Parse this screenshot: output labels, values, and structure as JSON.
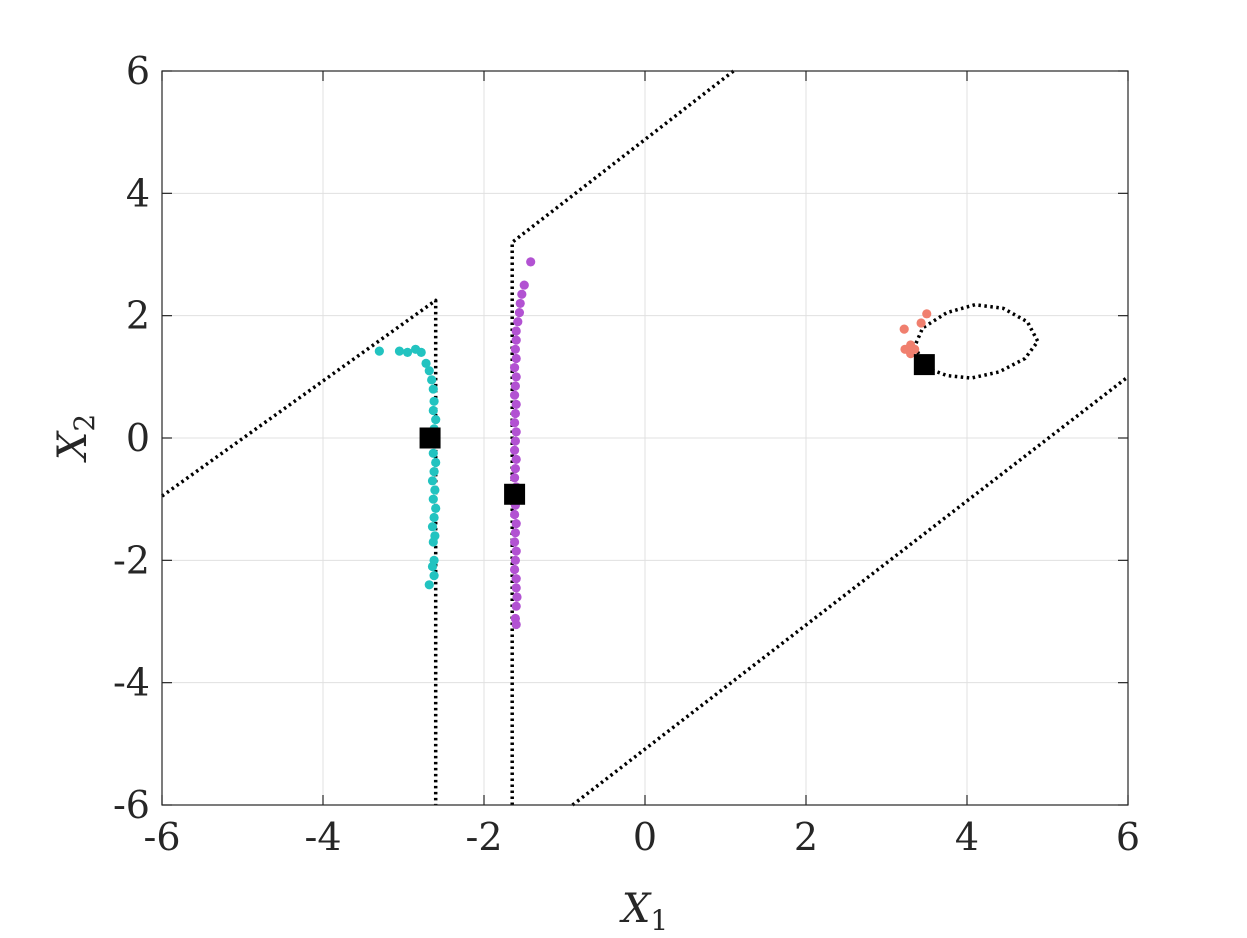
{
  "chart_data": {
    "type": "scatter",
    "xlabel": "X",
    "xlabel_sub": "1",
    "ylabel": "X",
    "ylabel_sub": "2",
    "xlim": [
      -6,
      6
    ],
    "ylim": [
      -6,
      6
    ],
    "xticks": [
      -6,
      -4,
      -2,
      0,
      2,
      4,
      6
    ],
    "yticks": [
      -6,
      -4,
      -2,
      0,
      2,
      4,
      6
    ],
    "grid": true,
    "series": [
      {
        "color": "#22c3c0",
        "points": [
          [
            -3.3,
            1.42
          ],
          [
            -3.05,
            1.42
          ],
          [
            -2.95,
            1.4
          ],
          [
            -2.85,
            1.45
          ],
          [
            -2.78,
            1.4
          ],
          [
            -2.72,
            1.22
          ],
          [
            -2.68,
            1.1
          ],
          [
            -2.65,
            0.95
          ],
          [
            -2.63,
            0.8
          ],
          [
            -2.62,
            0.6
          ],
          [
            -2.63,
            0.45
          ],
          [
            -2.6,
            0.3
          ],
          [
            -2.62,
            0.15
          ],
          [
            -2.64,
            0.05
          ],
          [
            -2.61,
            -0.1
          ],
          [
            -2.63,
            -0.25
          ],
          [
            -2.6,
            -0.4
          ],
          [
            -2.62,
            -0.55
          ],
          [
            -2.64,
            -0.7
          ],
          [
            -2.61,
            -0.85
          ],
          [
            -2.63,
            -1.0
          ],
          [
            -2.6,
            -1.15
          ],
          [
            -2.62,
            -1.3
          ],
          [
            -2.64,
            -1.45
          ],
          [
            -2.61,
            -1.6
          ],
          [
            -2.63,
            -1.7
          ],
          [
            -2.62,
            -2.0
          ],
          [
            -2.64,
            -2.1
          ],
          [
            -2.62,
            -2.25
          ],
          [
            -2.68,
            -2.4
          ]
        ]
      },
      {
        "color": "#b252d2",
        "points": [
          [
            -1.42,
            2.88
          ],
          [
            -1.5,
            2.5
          ],
          [
            -1.53,
            2.35
          ],
          [
            -1.55,
            2.2
          ],
          [
            -1.56,
            2.05
          ],
          [
            -1.58,
            1.9
          ],
          [
            -1.6,
            1.75
          ],
          [
            -1.6,
            1.6
          ],
          [
            -1.61,
            1.45
          ],
          [
            -1.6,
            1.3
          ],
          [
            -1.62,
            1.15
          ],
          [
            -1.6,
            1.0
          ],
          [
            -1.61,
            0.85
          ],
          [
            -1.62,
            0.7
          ],
          [
            -1.6,
            0.55
          ],
          [
            -1.61,
            0.4
          ],
          [
            -1.62,
            0.25
          ],
          [
            -1.6,
            0.1
          ],
          [
            -1.61,
            -0.05
          ],
          [
            -1.62,
            -0.2
          ],
          [
            -1.6,
            -0.35
          ],
          [
            -1.61,
            -0.5
          ],
          [
            -1.62,
            -0.65
          ],
          [
            -1.6,
            -0.8
          ],
          [
            -1.61,
            -1.1
          ],
          [
            -1.62,
            -1.25
          ],
          [
            -1.6,
            -1.4
          ],
          [
            -1.61,
            -1.55
          ],
          [
            -1.62,
            -1.7
          ],
          [
            -1.6,
            -1.85
          ],
          [
            -1.61,
            -2.0
          ],
          [
            -1.62,
            -2.15
          ],
          [
            -1.6,
            -2.3
          ],
          [
            -1.6,
            -2.45
          ],
          [
            -1.59,
            -2.6
          ],
          [
            -1.6,
            -2.75
          ],
          [
            -1.61,
            -2.95
          ],
          [
            -1.6,
            -3.05
          ]
        ]
      },
      {
        "color": "#f07f6e",
        "points": [
          [
            3.22,
            1.78
          ],
          [
            3.43,
            1.88
          ],
          [
            3.5,
            2.03
          ],
          [
            3.3,
            1.52
          ],
          [
            3.23,
            1.45
          ],
          [
            3.3,
            1.4
          ],
          [
            3.35,
            1.45
          ],
          [
            3.3,
            1.38
          ]
        ]
      }
    ],
    "centers": [
      [
        -2.67,
        0.0
      ],
      [
        -1.62,
        -0.92
      ],
      [
        3.47,
        1.2
      ]
    ],
    "boundaries": [
      [
        [
          -6,
          -0.95
        ],
        [
          -2.6,
          2.25
        ],
        [
          -2.6,
          -6
        ]
      ],
      [
        [
          -1.65,
          -6
        ],
        [
          -1.65,
          3.2
        ],
        [
          1.1,
          6
        ]
      ],
      [
        [
          -0.9,
          -6
        ],
        [
          6,
          1.0
        ]
      ],
      [
        [
          3.47,
          1.2
        ],
        [
          3.35,
          1.5
        ],
        [
          3.45,
          1.8
        ],
        [
          3.75,
          2.05
        ],
        [
          4.1,
          2.18
        ],
        [
          4.45,
          2.12
        ],
        [
          4.75,
          1.9
        ],
        [
          4.88,
          1.58
        ],
        [
          4.72,
          1.3
        ],
        [
          4.4,
          1.08
        ],
        [
          4.05,
          0.98
        ],
        [
          3.75,
          1.02
        ],
        [
          3.55,
          1.12
        ],
        [
          3.47,
          1.2
        ]
      ]
    ]
  }
}
